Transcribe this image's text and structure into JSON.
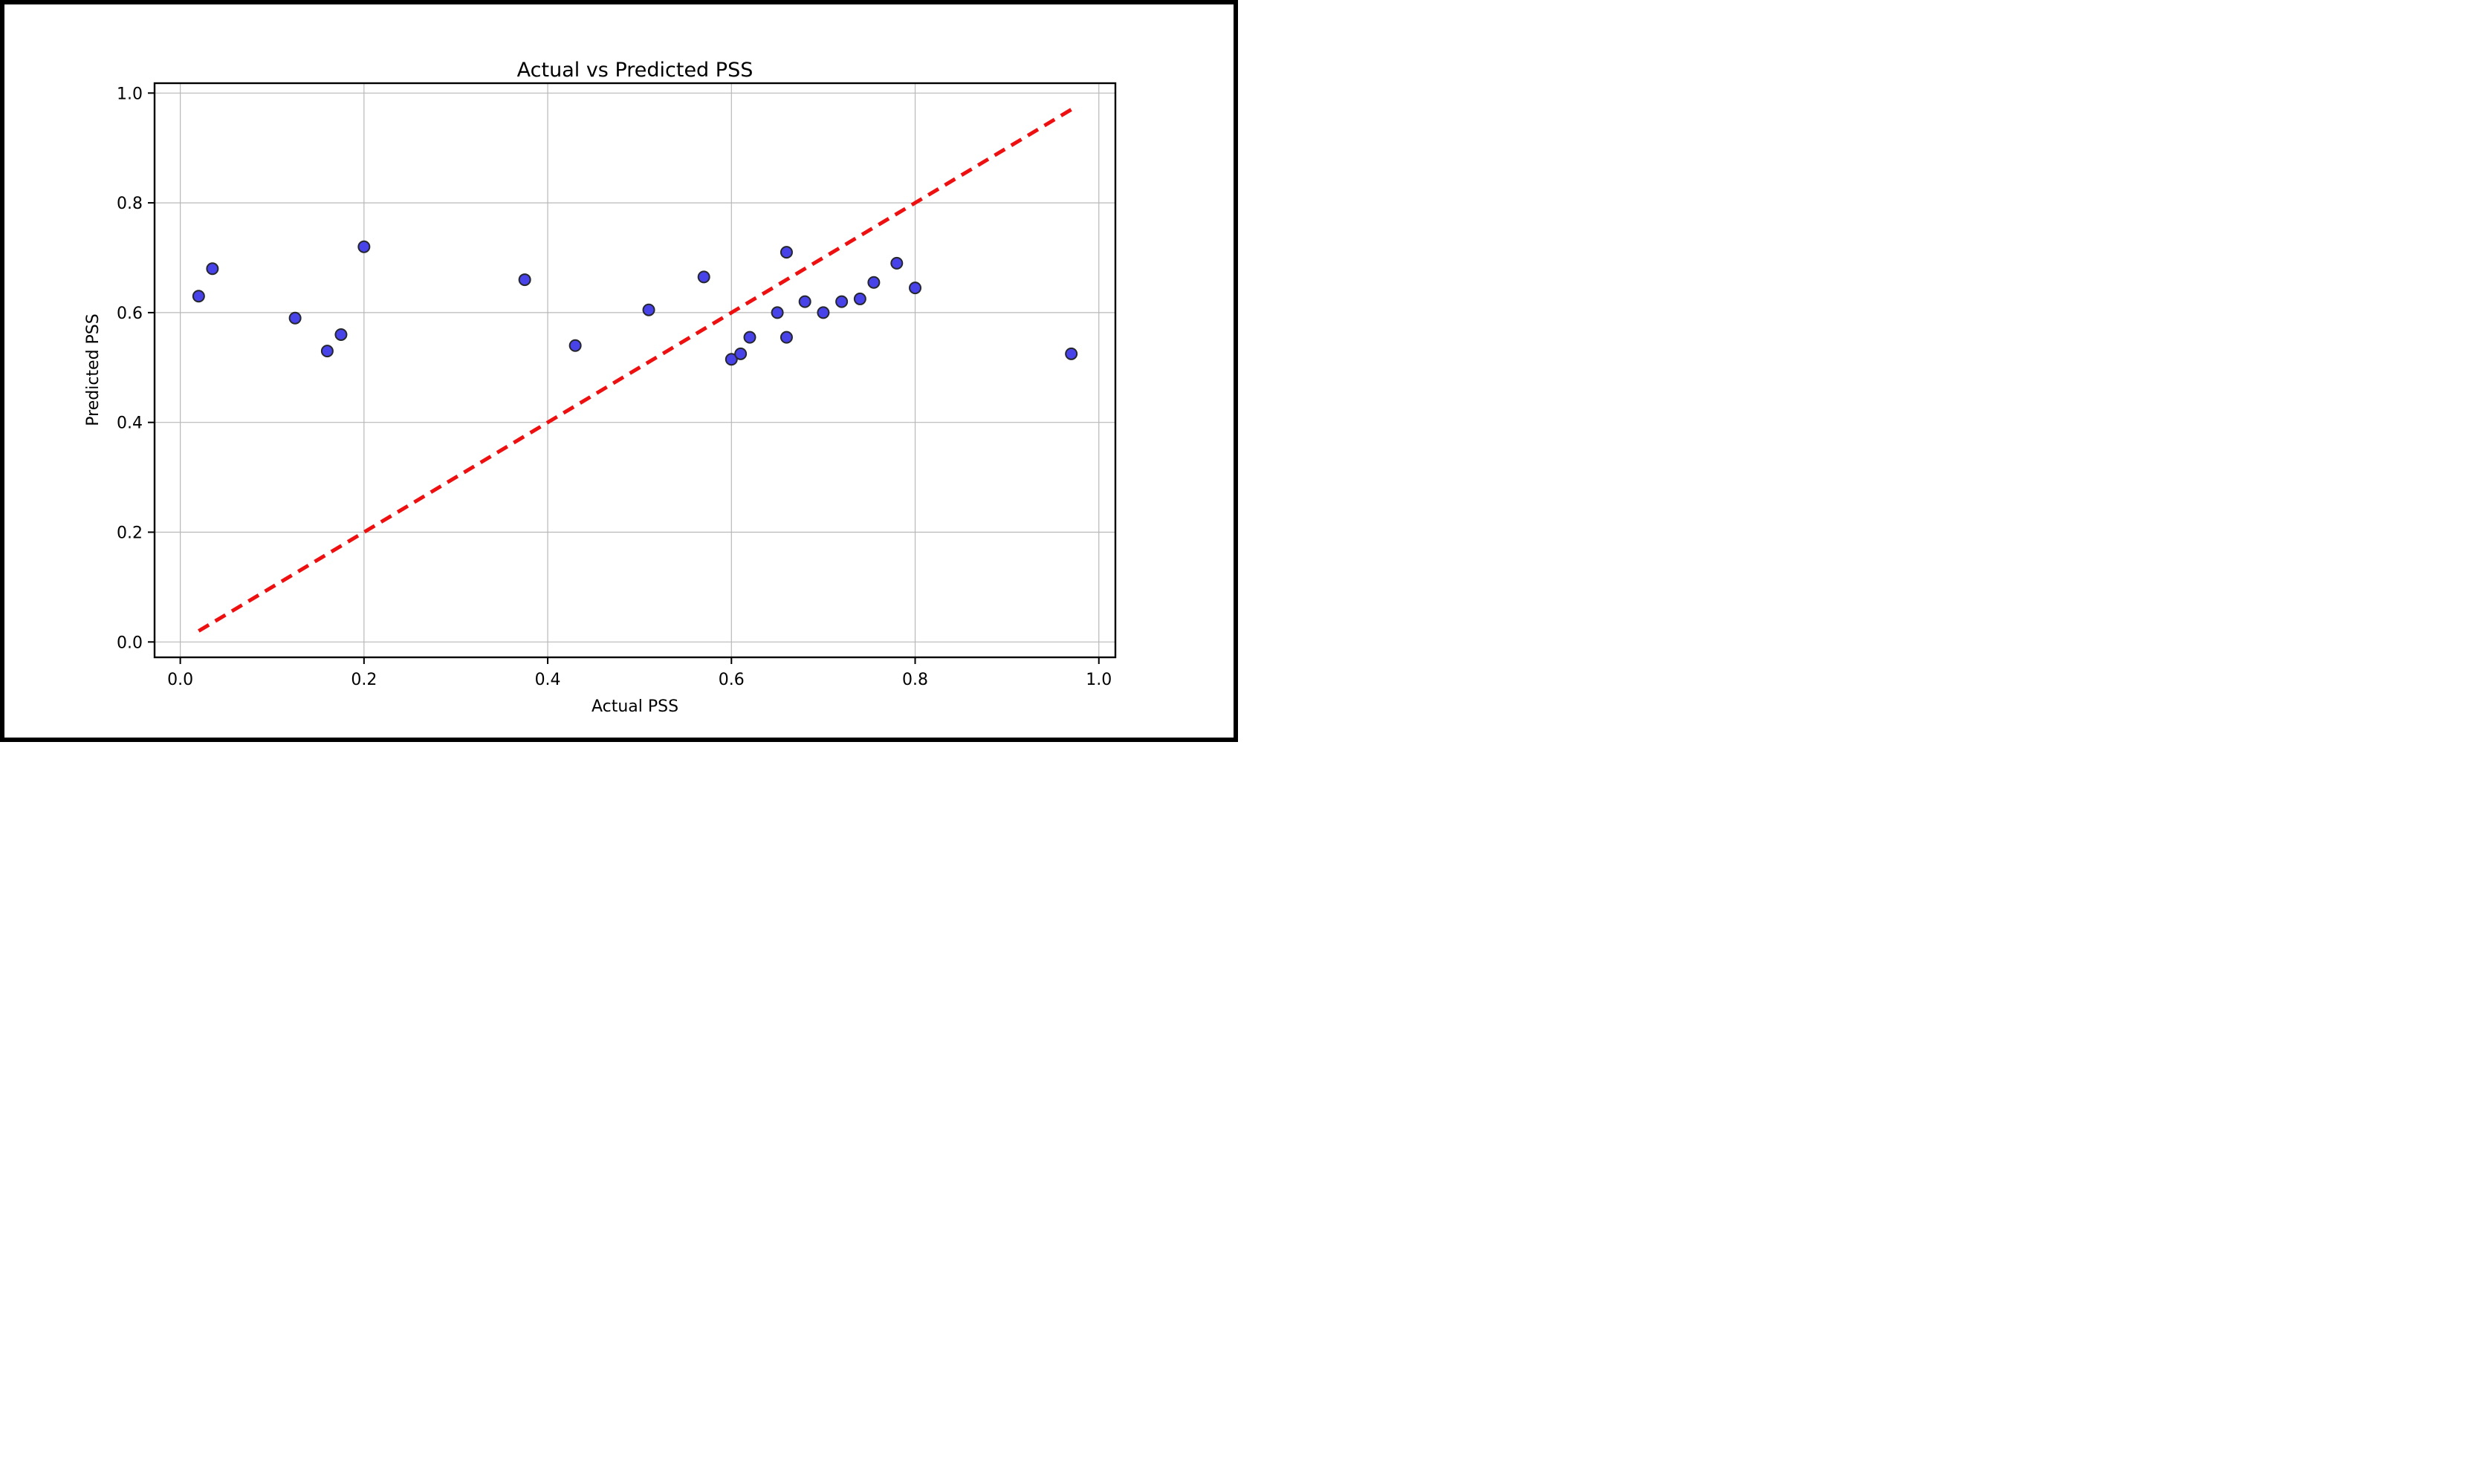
{
  "chart_data": {
    "type": "scatter",
    "title": "Actual vs Predicted PSS",
    "xlabel": "Actual PSS",
    "ylabel": "Predicted PSS",
    "xlim": [
      -0.028,
      1.018
    ],
    "ylim": [
      -0.028,
      1.018
    ],
    "grid": true,
    "grid_color": "#b8b8b8",
    "spine_color": "#000000",
    "x_ticks": [
      0.0,
      0.2,
      0.4,
      0.6,
      0.8,
      1.0
    ],
    "x_tick_labels": [
      "0.0",
      "0.2",
      "0.4",
      "0.6",
      "0.8",
      "1.0"
    ],
    "y_ticks": [
      0.0,
      0.2,
      0.4,
      0.6,
      0.8,
      1.0
    ],
    "y_tick_labels": [
      "0.0",
      "0.2",
      "0.4",
      "0.6",
      "0.8",
      "1.0"
    ],
    "series": [
      {
        "name": "predicted-vs-actual-points",
        "marker": "circle",
        "fill_color": "#4843e8",
        "edge_color": "#26262e",
        "points": [
          [
            0.02,
            0.63
          ],
          [
            0.035,
            0.68
          ],
          [
            0.125,
            0.59
          ],
          [
            0.16,
            0.53
          ],
          [
            0.175,
            0.56
          ],
          [
            0.2,
            0.72
          ],
          [
            0.375,
            0.66
          ],
          [
            0.43,
            0.54
          ],
          [
            0.51,
            0.605
          ],
          [
            0.57,
            0.665
          ],
          [
            0.6,
            0.515
          ],
          [
            0.61,
            0.525
          ],
          [
            0.62,
            0.555
          ],
          [
            0.65,
            0.6
          ],
          [
            0.66,
            0.555
          ],
          [
            0.66,
            0.71
          ],
          [
            0.68,
            0.62
          ],
          [
            0.7,
            0.6
          ],
          [
            0.72,
            0.62
          ],
          [
            0.74,
            0.625
          ],
          [
            0.755,
            0.655
          ],
          [
            0.78,
            0.69
          ],
          [
            0.8,
            0.645
          ],
          [
            0.97,
            0.525
          ]
        ]
      }
    ],
    "identity_line": {
      "style": "dashed",
      "color": "#ee1010",
      "from": [
        0.02,
        0.02
      ],
      "to": [
        0.97,
        0.97
      ]
    }
  }
}
